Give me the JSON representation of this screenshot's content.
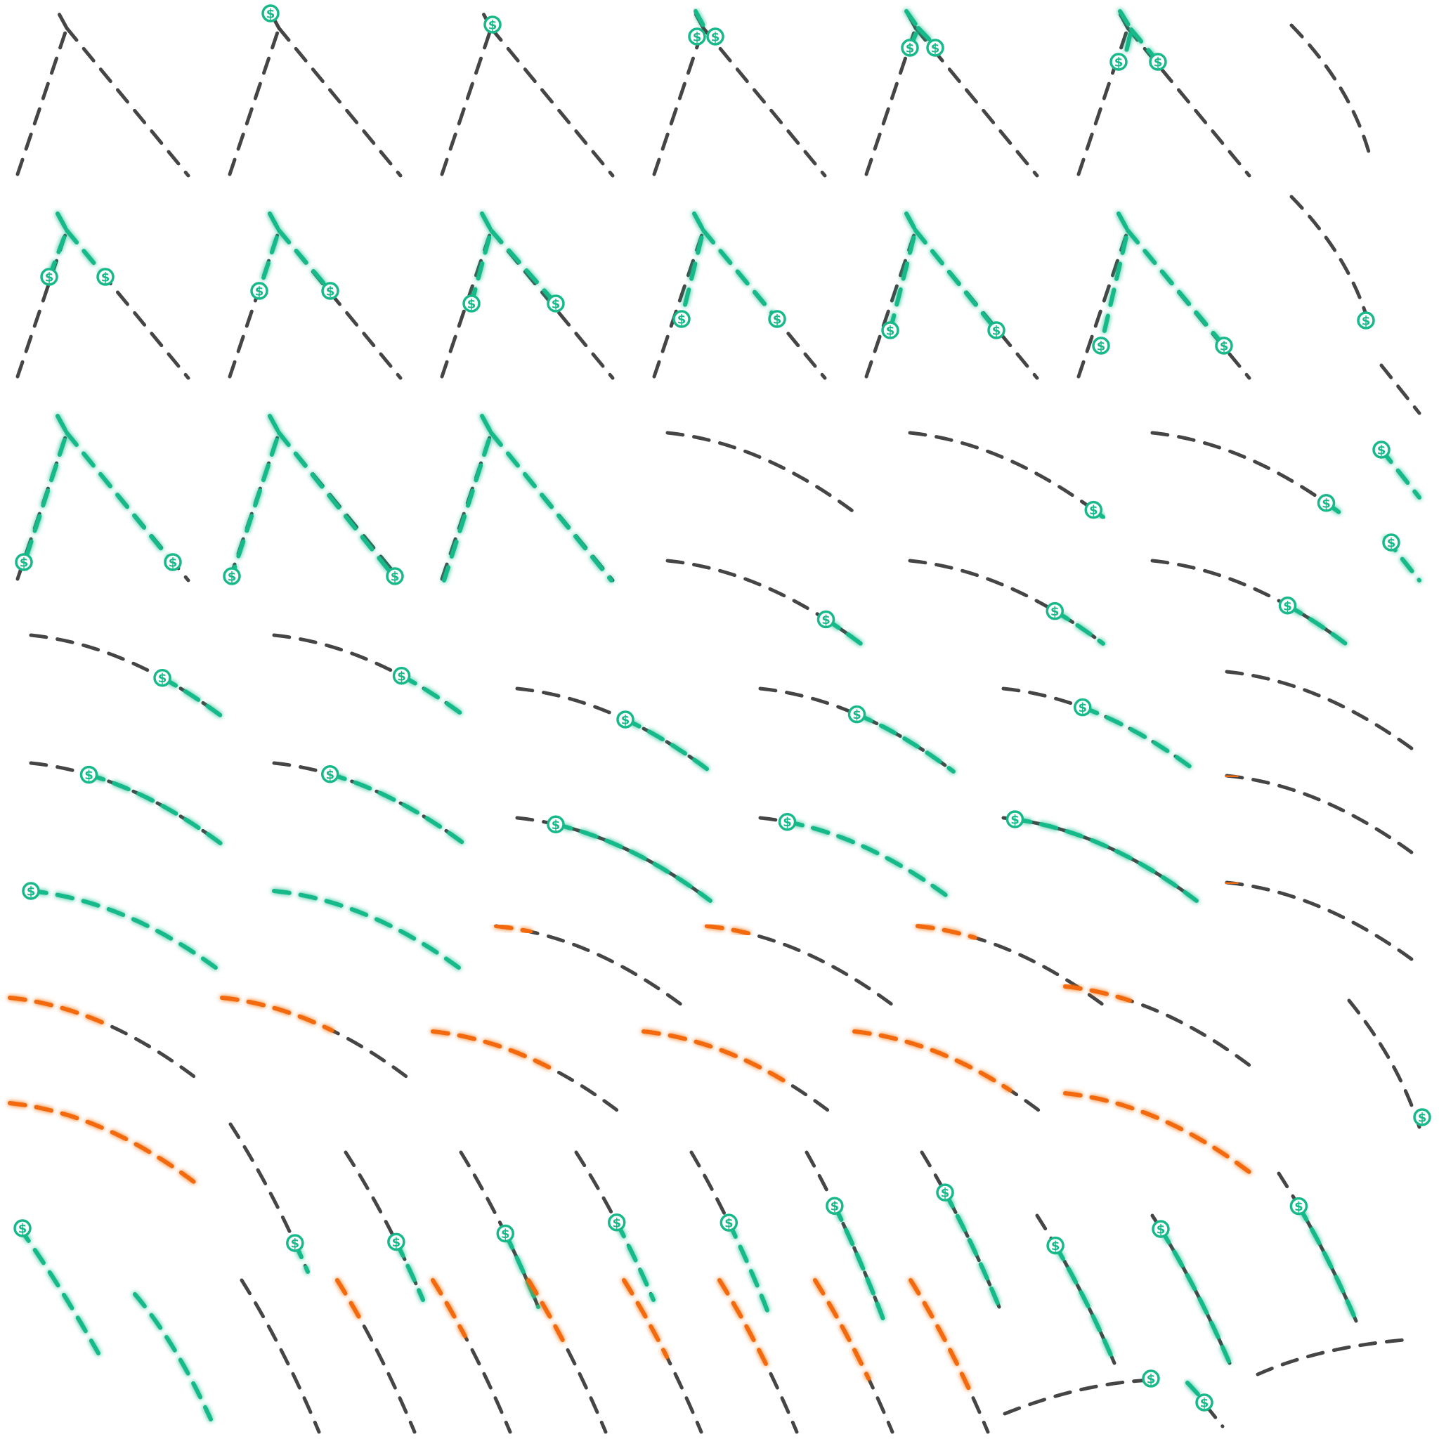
{
  "colors": {
    "background": "#ffffff",
    "idle_line": "#454545",
    "reward_trail": "#17b98a",
    "penalty_trail": "#f26a0c",
    "coin": "#17b98a"
  },
  "icons": {
    "coin": "dollar-coin-icon",
    "coin_glyph": "$"
  }
}
